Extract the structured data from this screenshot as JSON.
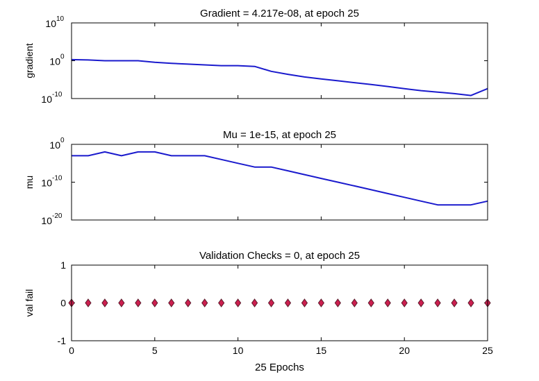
{
  "colors": {
    "line": "#1a1acd",
    "marker": "#cc1f4f",
    "marker_edge": "#5a1a2a",
    "axes": "#000000",
    "background": "#ffffff"
  },
  "chart_data": [
    {
      "type": "line",
      "title": "Gradient = 4.217e-08, at epoch 25",
      "ylabel": "gradient",
      "xlabel": "",
      "yscale": "log",
      "ylim_exp": [
        -10,
        10
      ],
      "xlim": [
        0,
        25
      ],
      "yticks": [
        {
          "base": "10",
          "exp": "10"
        },
        {
          "base": "10",
          "exp": "0"
        },
        {
          "base": "10",
          "exp": "-10"
        }
      ],
      "show_x_ticklabels": false,
      "grid": false,
      "series": [
        {
          "x": [
            0,
            1,
            2,
            3,
            4,
            5,
            6,
            7,
            8,
            9,
            10,
            11,
            12,
            13,
            14,
            15,
            16,
            17,
            18,
            19,
            20,
            21,
            22,
            23,
            24,
            25
          ],
          "y_log10": [
            0.3,
            0.2,
            0.0,
            0.0,
            0.0,
            -0.4,
            -0.7,
            -0.9,
            -1.1,
            -1.3,
            -1.3,
            -1.5,
            -2.8,
            -3.6,
            -4.3,
            -4.8,
            -5.3,
            -5.8,
            -6.3,
            -6.8,
            -7.4,
            -7.9,
            -8.3,
            -8.7,
            -9.2,
            -7.37
          ]
        }
      ]
    },
    {
      "type": "line",
      "title": "Mu = 1e-15, at epoch 25",
      "ylabel": "mu",
      "xlabel": "",
      "yscale": "log",
      "ylim_exp": [
        -20,
        0
      ],
      "xlim": [
        0,
        25
      ],
      "yticks": [
        {
          "base": "10",
          "exp": "0"
        },
        {
          "base": "10",
          "exp": "-10"
        },
        {
          "base": "10",
          "exp": "-20"
        }
      ],
      "show_x_ticklabels": false,
      "grid": false,
      "series": [
        {
          "x": [
            0,
            1,
            2,
            3,
            4,
            5,
            6,
            7,
            8,
            9,
            10,
            11,
            12,
            13,
            14,
            15,
            16,
            17,
            18,
            19,
            20,
            21,
            22,
            23,
            24,
            25
          ],
          "y_log10": [
            -3,
            -3,
            -2,
            -3,
            -2,
            -2,
            -3,
            -3,
            -3,
            -4,
            -5,
            -6,
            -6,
            -7,
            -8,
            -9,
            -10,
            -11,
            -12,
            -13,
            -14,
            -15,
            -16,
            -16,
            -16,
            -15
          ]
        }
      ]
    },
    {
      "type": "scatter",
      "title": "Validation Checks = 0, at epoch 25",
      "ylabel": "val fail",
      "xlabel": "25 Epochs",
      "yscale": "linear",
      "ylim": [
        -1,
        1
      ],
      "xlim": [
        0,
        25
      ],
      "yticks": [
        "1",
        "0",
        "-1"
      ],
      "xticks": [
        "0",
        "5",
        "10",
        "15",
        "20",
        "25"
      ],
      "show_x_ticklabels": true,
      "grid": false,
      "series": [
        {
          "marker": "diamond",
          "x": [
            0,
            1,
            2,
            3,
            4,
            5,
            6,
            7,
            8,
            9,
            10,
            11,
            12,
            13,
            14,
            15,
            16,
            17,
            18,
            19,
            20,
            21,
            22,
            23,
            24,
            25
          ],
          "y": [
            0,
            0,
            0,
            0,
            0,
            0,
            0,
            0,
            0,
            0,
            0,
            0,
            0,
            0,
            0,
            0,
            0,
            0,
            0,
            0,
            0,
            0,
            0,
            0,
            0,
            0
          ]
        }
      ]
    }
  ]
}
